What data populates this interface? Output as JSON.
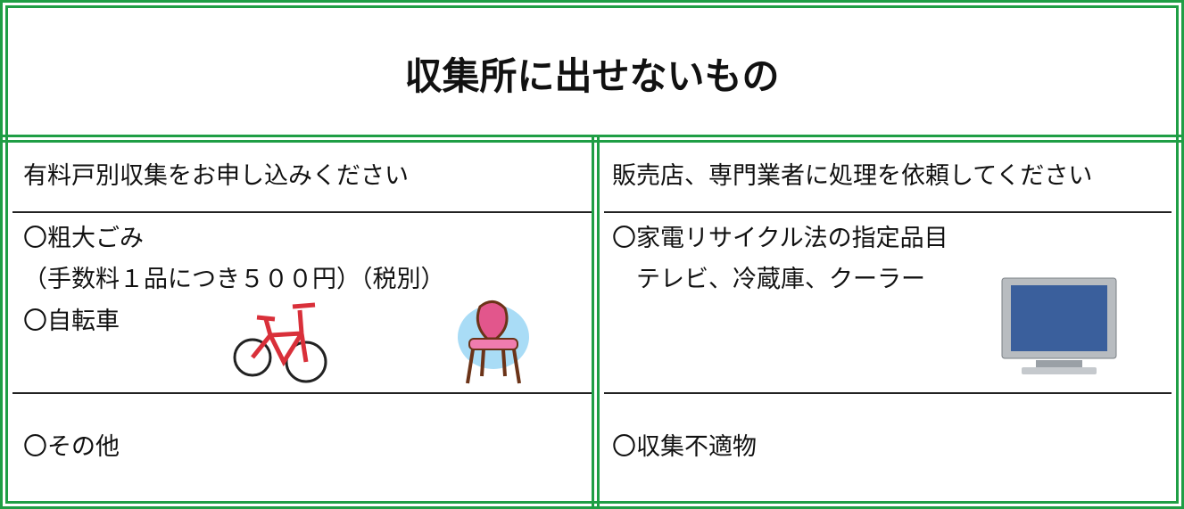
{
  "title": "収集所に出せないもの",
  "columns": [
    {
      "header": "有料戸別収集をお申し込みください",
      "details": [
        "〇粗大ごみ",
        "（手数料１品につき５００円）（税別）",
        "〇自転車"
      ],
      "other": "〇その他"
    },
    {
      "header": "販売店、専門業者に処理を依頼してください",
      "details": [
        "〇家電リサイクル法の指定品目",
        "　テレビ、冷蔵庫、クーラー"
      ],
      "other": "〇収集不適物"
    }
  ]
}
